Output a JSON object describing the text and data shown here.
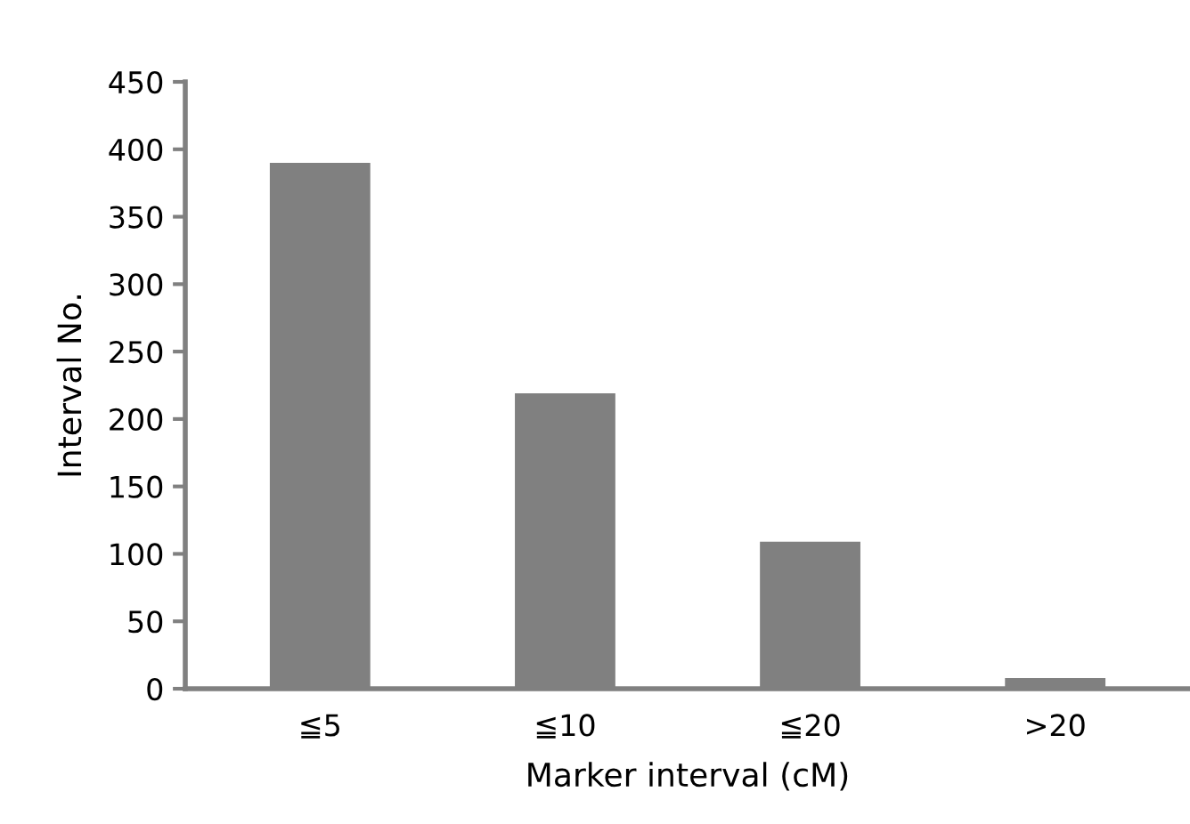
{
  "chart_data": {
    "type": "bar",
    "xlabel": "Marker interval (cM)",
    "ylabel": "Interval No.",
    "categories": [
      "≦5",
      "≦10",
      "≦20",
      ">20"
    ],
    "values": [
      390,
      219,
      109,
      8
    ],
    "color": "#808080",
    "ylim": [
      0,
      450
    ],
    "yticks": [
      0,
      50,
      100,
      150,
      200,
      250,
      300,
      350,
      400,
      450
    ],
    "grid": false
  }
}
